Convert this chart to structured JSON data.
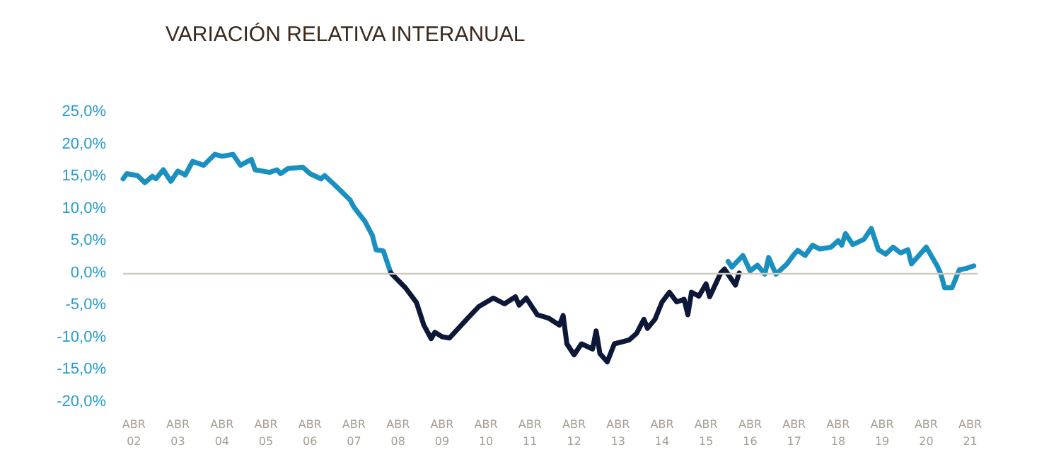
{
  "chart_data": {
    "type": "line",
    "title": "VARIACIÓN RELATIVA INTERANUAL",
    "xlim": [
      "2002-01",
      "2021-06"
    ],
    "xticks": [
      {
        "value": "2002-04",
        "label": "ABR\n02"
      },
      {
        "value": "2003-04",
        "label": "ABR\n03"
      },
      {
        "value": "2004-04",
        "label": "ABR\n04"
      },
      {
        "value": "2005-04",
        "label": "ABR\n05"
      },
      {
        "value": "2006-04",
        "label": "ABR\n06"
      },
      {
        "value": "2007-04",
        "label": "ABR\n07"
      },
      {
        "value": "2008-04",
        "label": "ABR\n08"
      },
      {
        "value": "2009-04",
        "label": "ABR\n09"
      },
      {
        "value": "2010-04",
        "label": "ABR\n10"
      },
      {
        "value": "2011-04",
        "label": "ABR\n11"
      },
      {
        "value": "2012-04",
        "label": "ABR\n12"
      },
      {
        "value": "2013-04",
        "label": "ABR\n13"
      },
      {
        "value": "2014-04",
        "label": "ABR\n14"
      },
      {
        "value": "2015-04",
        "label": "ABR\n15"
      },
      {
        "value": "2016-04",
        "label": "ABR\n16"
      },
      {
        "value": "2017-04",
        "label": "ABR\n17"
      },
      {
        "value": "2018-04",
        "label": "ABR\n18"
      },
      {
        "value": "2019-04",
        "label": "ABR\n19"
      },
      {
        "value": "2020-04",
        "label": "ABR\n20"
      },
      {
        "value": "2021-04",
        "label": "ABR\n21"
      }
    ],
    "ylim": [
      -20,
      25
    ],
    "yticks": [
      {
        "value": -20,
        "label": "-20,0%"
      },
      {
        "value": -15,
        "label": "-15,0%"
      },
      {
        "value": -10,
        "label": "-10,0%"
      },
      {
        "value": -5,
        "label": "-5,0%"
      },
      {
        "value": 0,
        "label": "0,0%"
      },
      {
        "value": 5,
        "label": "5,0%"
      },
      {
        "value": 10,
        "label": "10,0%"
      },
      {
        "value": 15,
        "label": "15,0%"
      },
      {
        "value": 20,
        "label": "20,0%"
      },
      {
        "value": 25,
        "label": "25,0%"
      }
    ],
    "grid": false,
    "marker": "none",
    "line_style": "solid",
    "ref_lines": [
      {
        "axis": "y",
        "value": 0,
        "color": "#cfcbc0"
      }
    ],
    "series": [
      {
        "color": "#1a90c0",
        "x": [
          "2002-01",
          "2002-02",
          "2002-05",
          "2002-07",
          "2002-09",
          "2002-10",
          "2002-12",
          "2003-02",
          "2003-04",
          "2003-06",
          "2003-08",
          "2003-11",
          "2004-02",
          "2004-04",
          "2004-07",
          "2004-09",
          "2004-12",
          "2005-01",
          "2005-05",
          "2005-07",
          "2005-08",
          "2005-10",
          "2006-02",
          "2006-04",
          "2006-07",
          "2006-08",
          "2006-11",
          "2007-03",
          "2007-04",
          "2007-07",
          "2007-09",
          "2007-10",
          "2007-12",
          "2008-02"
        ],
        "values": [
          14.6,
          15.4,
          15.1,
          14.0,
          15.0,
          14.6,
          16.0,
          14.2,
          15.8,
          15.2,
          17.3,
          16.7,
          18.4,
          18.1,
          18.4,
          16.7,
          17.6,
          16.0,
          15.6,
          16.0,
          15.4,
          16.2,
          16.4,
          15.4,
          14.6,
          15.1,
          13.5,
          11.3,
          10.2,
          8.0,
          5.8,
          3.6,
          3.4,
          0.0
        ]
      },
      {
        "color": "#0d1838",
        "x": [
          "2008-02",
          "2008-06",
          "2008-09",
          "2008-11",
          "2009-01",
          "2009-02",
          "2009-04",
          "2009-06",
          "2009-11",
          "2010-02",
          "2010-06",
          "2010-09",
          "2010-12",
          "2011-01",
          "2011-03",
          "2011-06",
          "2011-09",
          "2011-12",
          "2012-01",
          "2012-02",
          "2012-04",
          "2012-06",
          "2012-09",
          "2012-10",
          "2012-11",
          "2013-01",
          "2013-03",
          "2013-07",
          "2013-09",
          "2013-11",
          "2013-12",
          "2014-02",
          "2014-04",
          "2014-06",
          "2014-08",
          "2014-10",
          "2014-11",
          "2014-12",
          "2015-02",
          "2015-04",
          "2015-05",
          "2015-08",
          "2015-09",
          "2015-12",
          "2016-01"
        ],
        "values": [
          0.0,
          -2.3,
          -4.6,
          -8.1,
          -10.2,
          -9.2,
          -9.9,
          -10.1,
          -7.0,
          -5.2,
          -3.9,
          -4.8,
          -3.7,
          -5.0,
          -3.9,
          -6.5,
          -7.0,
          -8.1,
          -6.6,
          -11.0,
          -12.7,
          -11.0,
          -11.8,
          -9.0,
          -12.5,
          -13.8,
          -11.0,
          -10.4,
          -9.4,
          -7.2,
          -8.6,
          -7.2,
          -4.5,
          -3.0,
          -4.5,
          -4.1,
          -6.5,
          -3.0,
          -3.6,
          -1.7,
          -3.7,
          0.0,
          0.6,
          -1.9,
          0.0
        ]
      },
      {
        "color": "#1a90c0",
        "x": [
          "2015-10",
          "2015-11",
          "2016-02",
          "2016-04",
          "2016-06",
          "2016-08",
          "2016-09",
          "2016-11",
          "2017-02",
          "2017-04",
          "2017-05",
          "2017-07",
          "2017-09",
          "2017-11",
          "2018-02",
          "2018-04",
          "2018-05",
          "2018-06",
          "2018-08",
          "2018-11",
          "2019-01",
          "2019-03",
          "2019-05",
          "2019-07",
          "2019-09",
          "2019-11",
          "2019-12",
          "2020-04",
          "2020-07",
          "2020-08",
          "2020-09",
          "2020-11",
          "2021-01",
          "2021-03",
          "2021-05"
        ],
        "values": [
          1.8,
          0.9,
          2.7,
          0.3,
          1.2,
          -0.2,
          2.4,
          -0.2,
          1.4,
          2.9,
          3.5,
          2.7,
          4.3,
          3.7,
          4.0,
          5.0,
          4.3,
          6.1,
          4.4,
          5.2,
          6.9,
          3.6,
          2.9,
          4.0,
          3.1,
          3.6,
          1.4,
          4.0,
          1.1,
          -0.2,
          -2.3,
          -2.3,
          0.5,
          0.7,
          1.1
        ]
      }
    ]
  }
}
